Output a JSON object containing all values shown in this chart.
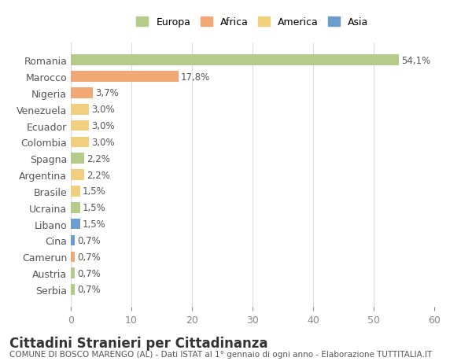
{
  "categories": [
    "Romania",
    "Marocco",
    "Nigeria",
    "Venezuela",
    "Ecuador",
    "Colombia",
    "Spagna",
    "Argentina",
    "Brasile",
    "Ucraina",
    "Libano",
    "Cina",
    "Camerun",
    "Austria",
    "Serbia"
  ],
  "values": [
    54.1,
    17.8,
    3.7,
    3.0,
    3.0,
    3.0,
    2.2,
    2.2,
    1.5,
    1.5,
    1.5,
    0.7,
    0.7,
    0.7,
    0.7
  ],
  "labels": [
    "54,1%",
    "17,8%",
    "3,7%",
    "3,0%",
    "3,0%",
    "3,0%",
    "2,2%",
    "2,2%",
    "1,5%",
    "1,5%",
    "1,5%",
    "0,7%",
    "0,7%",
    "0,7%",
    "0,7%"
  ],
  "continents": [
    "Europa",
    "Africa",
    "Africa",
    "America",
    "America",
    "America",
    "Europa",
    "America",
    "America",
    "Europa",
    "Asia",
    "Asia",
    "Africa",
    "Europa",
    "Europa"
  ],
  "colors": {
    "Europa": "#b5cb8b",
    "Africa": "#f0a877",
    "America": "#f0d080",
    "Asia": "#6b9ecf"
  },
  "legend_order": [
    "Europa",
    "Africa",
    "America",
    "Asia"
  ],
  "xlim": [
    0,
    60
  ],
  "xticks": [
    0,
    10,
    20,
    30,
    40,
    50,
    60
  ],
  "title": "Cittadini Stranieri per Cittadinanza",
  "subtitle": "COMUNE DI BOSCO MARENGO (AL) - Dati ISTAT al 1° gennaio di ogni anno - Elaborazione TUTTITALIA.IT",
  "bg_color": "#ffffff",
  "grid_color": "#dddddd",
  "bar_height": 0.65,
  "label_fontsize": 8.5,
  "ytick_fontsize": 9,
  "xtick_fontsize": 9,
  "title_fontsize": 12,
  "subtitle_fontsize": 7.5
}
